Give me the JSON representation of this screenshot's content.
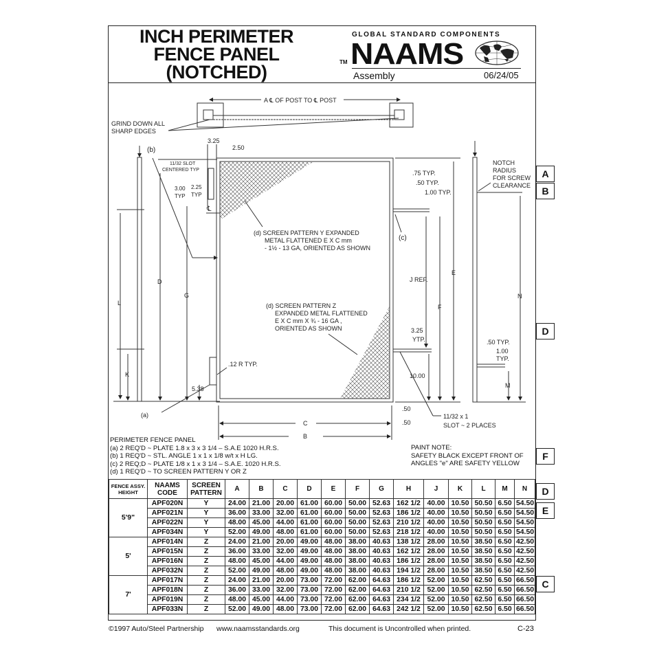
{
  "header": {
    "title_lines": [
      "INCH PERIMETER",
      "FENCE PANEL",
      "(NOTCHED)"
    ],
    "brand_tagline": "GLOBAL STANDARD COMPONENTS",
    "brand_tm": "TM",
    "brand_logo": "NAAMS",
    "section": "Assembly",
    "date": "06/24/05"
  },
  "drawing": {
    "labels": {
      "a_post": "A ℄ OF POST TO ℄ POST",
      "grind_1": "GRIND DOWN ALL",
      "grind_2": "SHARP EDGES",
      "b": "(b)",
      "d325": "3.25",
      "d250": "2.50",
      "slot_1": "11/32 SLOT",
      "slot_2": "CENTERED TYP",
      "d300": "3.00",
      "typ1": "TYP",
      "d225": "2.25",
      "typ2": "TYP",
      "cl": "℄",
      "screen_y_1": "(d)  SCREEN PATTERN Y EXPANDED",
      "screen_y_2": "METAL FLATTENED E X C mm",
      "screen_y_3": "- 1½ - 13 GA, ORIENTED AS SHOWN",
      "screen_z_1": "(d) SCREEN PATTERN Z",
      "screen_z_2": "EXPANDED METAL FLATTENED",
      "screen_z_3": "E X C mm X ¾ - 16 GA ,",
      "screen_z_4": "ORIENTED AS SHOWN",
      "L": "L",
      "D": "D",
      "G": "G",
      "K": "K",
      "d538": "5.38",
      "r12": ".12 R TYP.",
      "a": "(a)",
      "C": "C",
      "B": "B",
      "d50a": ".50",
      "d50b": ".50",
      "d75": ".75 TYP.",
      "d50typ": ".50 TYP.",
      "d100typ": "1.00 TYP.",
      "c": "(c)",
      "jref": "J REF.",
      "E": "E",
      "F": "F",
      "d325b": "3.25",
      "ytp": "YTP.",
      "d1000": "10.00",
      "slot2_1": "11/32 x 1",
      "slot2_2": "SLOT ~ 2 PLACES",
      "notch_1": "NOTCH",
      "notch_2": "RADIUS",
      "notch_3": "FOR SCREW",
      "notch_4": "CLEARANCE",
      "N": "N",
      "d50typ2": ".50 TYP.",
      "d100": "1.00",
      "typ3": "TYP.",
      "M": "M"
    }
  },
  "notes": {
    "title": "PERIMETER FENCE PANEL",
    "items": [
      "(a) 2 REQ'D ~ PLATE 1.8 x 3 x 3 1/4 – S.A.E 1020 H.R.S.",
      "(b) 1 REQ'D ~ STL. ANGLE 1 x 1 x 1/8 w/t x H LG.",
      "(c) 2 REQ;D ~ PLATE 1/8 x 1 x 3 1/4 – S.A.E. 1020 H.R.S.",
      "(d) 1 REQ'D ~ TO SCREEN PATTERN Y OR Z"
    ],
    "paint_title": "PAINT NOTE:",
    "paint_1": "SAFETY BLACK EXCEPT FRONT OF",
    "paint_2": "ANGLES \"e\" ARE SAFETY YELLOW"
  },
  "table": {
    "headers": [
      "FENCE ASSY. HEIGHT",
      "NAAMS CODE",
      "SCREEN PATTERN",
      "A",
      "B",
      "C",
      "D",
      "E",
      "F",
      "G",
      "H",
      "J",
      "K",
      "L",
      "M",
      "N"
    ],
    "groups": [
      {
        "height": "5'9\"",
        "rows": [
          [
            "APF020N",
            "Y",
            "24.00",
            "21.00",
            "20.00",
            "61.00",
            "60.00",
            "50.00",
            "52.63",
            "162 1/2",
            "40.00",
            "10.50",
            "50.50",
            "6.50",
            "54.50"
          ],
          [
            "APF021N",
            "Y",
            "36.00",
            "33.00",
            "32.00",
            "61.00",
            "60.00",
            "50.00",
            "52.63",
            "186 1/2",
            "40.00",
            "10.50",
            "50.50",
            "6.50",
            "54.50"
          ],
          [
            "APF022N",
            "Y",
            "48.00",
            "45.00",
            "44.00",
            "61.00",
            "60.00",
            "50.00",
            "52.63",
            "210 1/2",
            "40.00",
            "10.50",
            "50.50",
            "6.50",
            "54.50"
          ],
          [
            "APF034N",
            "Y",
            "52.00",
            "49.00",
            "48.00",
            "61.00",
            "60.00",
            "50.00",
            "52.63",
            "218 1/2",
            "40.00",
            "10.50",
            "50.50",
            "6.50",
            "54.50"
          ]
        ]
      },
      {
        "height": "5'",
        "rows": [
          [
            "APF014N",
            "Z",
            "24.00",
            "21.00",
            "20.00",
            "49.00",
            "48.00",
            "38.00",
            "40.63",
            "138 1/2",
            "28.00",
            "10.50",
            "38.50",
            "6.50",
            "42.50"
          ],
          [
            "APF015N",
            "Z",
            "36.00",
            "33.00",
            "32.00",
            "49.00",
            "48.00",
            "38.00",
            "40.63",
            "162 1/2",
            "28.00",
            "10.50",
            "38.50",
            "6.50",
            "42.50"
          ],
          [
            "APF016N",
            "Z",
            "48.00",
            "45.00",
            "44.00",
            "49.00",
            "48.00",
            "38.00",
            "40.63",
            "186 1/2",
            "28.00",
            "10.50",
            "38.50",
            "6.50",
            "42.50"
          ],
          [
            "APF032N",
            "Z",
            "52.00",
            "49.00",
            "48.00",
            "49.00",
            "48.00",
            "38.00",
            "40.63",
            "194 1/2",
            "28.00",
            "10.50",
            "38.50",
            "6.50",
            "42.50"
          ]
        ]
      },
      {
        "height": "7'",
        "rows": [
          [
            "APF017N",
            "Z",
            "24.00",
            "21.00",
            "20.00",
            "73.00",
            "72.00",
            "62.00",
            "64.63",
            "186 1/2",
            "52.00",
            "10.50",
            "62.50",
            "6.50",
            "66.50"
          ],
          [
            "APF018N",
            "Z",
            "36.00",
            "33.00",
            "32.00",
            "73.00",
            "72.00",
            "62.00",
            "64.63",
            "210 1/2",
            "52.00",
            "10.50",
            "62.50",
            "6.50",
            "66.50"
          ],
          [
            "APF019N",
            "Z",
            "48.00",
            "45.00",
            "44.00",
            "73.00",
            "72.00",
            "62.00",
            "64.63",
            "234 1/2",
            "52.00",
            "10.50",
            "62.50",
            "6.50",
            "66.50"
          ],
          [
            "APF033N",
            "Z",
            "52.00",
            "49.00",
            "48.00",
            "73.00",
            "72.00",
            "62.00",
            "64.63",
            "242 1/2",
            "52.00",
            "10.50",
            "62.50",
            "6.50",
            "66.50"
          ]
        ]
      }
    ]
  },
  "side_tabs": [
    "A",
    "B",
    "D",
    "F",
    "D",
    "E",
    "C"
  ],
  "footer": {
    "copyright": "©1997 Auto/Steel Partnership",
    "website": "www.naamsstandards.org",
    "uncontrolled": "This document is Uncontrolled when printed.",
    "page": "C-23"
  }
}
